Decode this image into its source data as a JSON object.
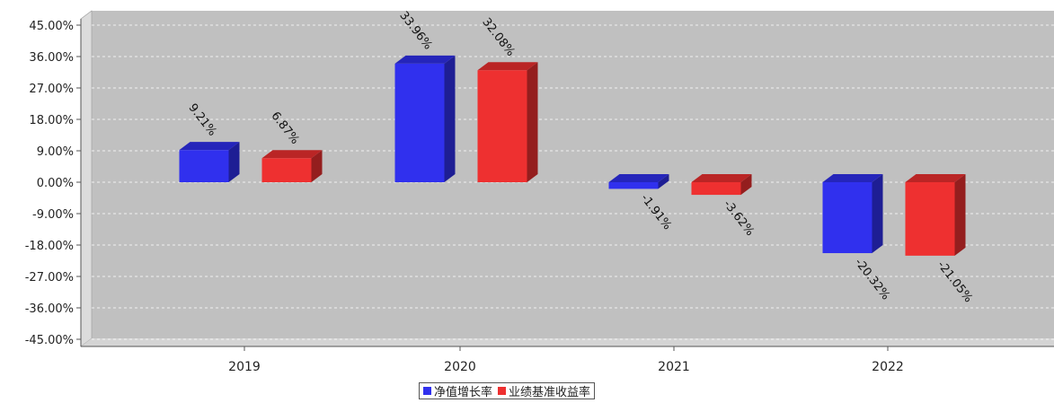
{
  "chart_data": {
    "type": "bar",
    "categories": [
      "2019",
      "2020",
      "2021",
      "2022"
    ],
    "series": [
      {
        "name": "净值增长率",
        "values": [
          9.21,
          33.96,
          -1.91,
          -20.32
        ],
        "labels": [
          "9.21%",
          "33.96%",
          "-1.91%",
          "-20.32%"
        ],
        "color": "#3030ee"
      },
      {
        "name": "业绩基准收益率",
        "values": [
          6.87,
          32.08,
          -3.62,
          -21.05
        ],
        "labels": [
          "6.87%",
          "32.08%",
          "-3.62%",
          "-21.05%"
        ],
        "color": "#ee3030"
      }
    ],
    "ylim": [
      -45,
      45
    ],
    "yticks": [
      45,
      36,
      27,
      18,
      9,
      0,
      -9,
      -18,
      -27,
      -36,
      -45
    ],
    "ytick_labels": [
      "45.00%",
      "36.00%",
      "27.00%",
      "18.00%",
      "9.00%",
      "0.00%",
      "-9.00%",
      "-18.00%",
      "-27.00%",
      "-36.00%",
      "-45.00%"
    ],
    "grid": true,
    "legend_position": "bottom-center",
    "title": "",
    "xlabel": "",
    "ylabel": ""
  }
}
